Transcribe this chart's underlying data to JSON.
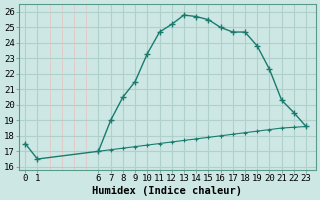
{
  "title": "",
  "xlabel": "Humidex (Indice chaleur)",
  "bg_color": "#cde8e4",
  "grid_major_color": "#b0d0cc",
  "grid_minor_color": "#e8c0c0",
  "line_color": "#1a7a6e",
  "x_upper": [
    0,
    1,
    6,
    7,
    8,
    9,
    10,
    11,
    12,
    13,
    14,
    15,
    16,
    17,
    18,
    19,
    20,
    21,
    22,
    23
  ],
  "y_upper": [
    17.5,
    16.5,
    17.0,
    19.0,
    20.5,
    21.5,
    23.3,
    24.7,
    25.2,
    25.8,
    25.7,
    25.5,
    25.0,
    24.7,
    24.7,
    23.8,
    22.3,
    20.3,
    19.5,
    18.6
  ],
  "x_lower": [
    6,
    7,
    8,
    9,
    10,
    11,
    12,
    13,
    14,
    15,
    16,
    17,
    18,
    19,
    20,
    21,
    22,
    23
  ],
  "y_lower": [
    17.0,
    17.1,
    17.2,
    17.3,
    17.4,
    17.5,
    17.6,
    17.7,
    17.8,
    17.9,
    18.0,
    18.1,
    18.2,
    18.3,
    18.4,
    18.5,
    18.55,
    18.6
  ],
  "xlim": [
    -0.5,
    23.8
  ],
  "ylim": [
    15.8,
    26.5
  ],
  "yticks": [
    16,
    17,
    18,
    19,
    20,
    21,
    22,
    23,
    24,
    25,
    26
  ],
  "xticks": [
    0,
    1,
    6,
    7,
    8,
    9,
    10,
    11,
    12,
    13,
    14,
    15,
    16,
    17,
    18,
    19,
    20,
    21,
    22,
    23
  ],
  "xtick_labels": [
    "0",
    "1",
    "6",
    "7",
    "8",
    "9",
    "10",
    "11",
    "12",
    "13",
    "14",
    "15",
    "16",
    "17",
    "18",
    "19",
    "20",
    "21",
    "22",
    "23"
  ],
  "tick_fontsize": 6.5,
  "label_fontsize": 7.5
}
